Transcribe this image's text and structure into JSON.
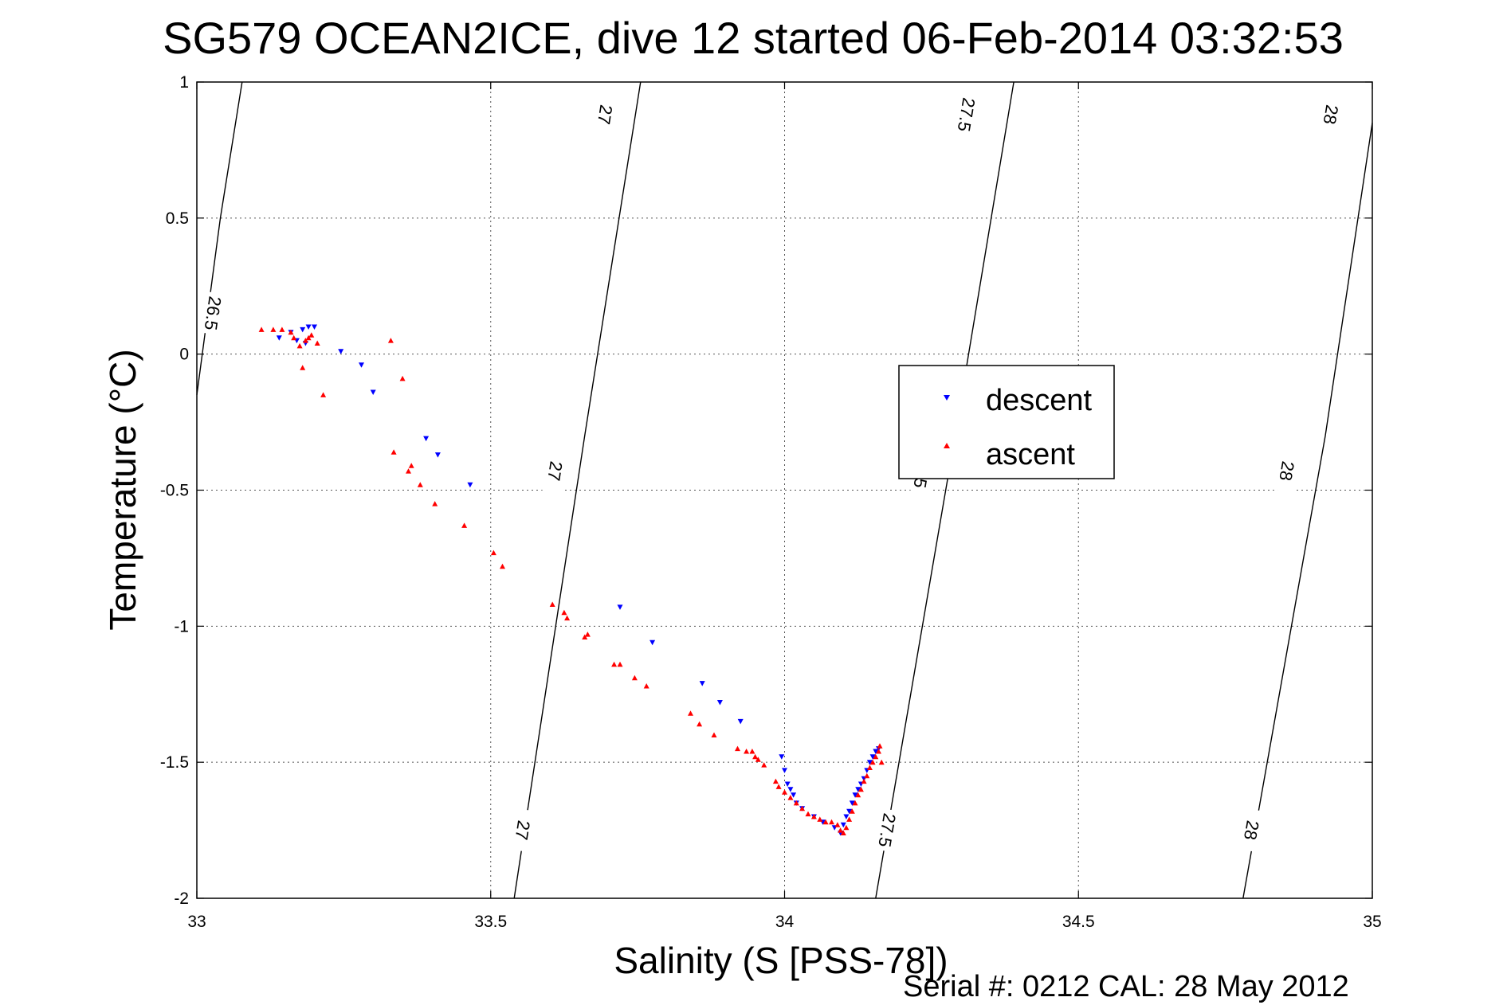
{
  "chart_data": {
    "type": "scatter",
    "title": "SG579 OCEAN2ICE, dive 12 started 06-Feb-2014 03:32:53",
    "xlabel": "Salinity (S [PSS-78])",
    "ylabel": "Temperature (°C)",
    "xlim": [
      33,
      35
    ],
    "ylim": [
      -2,
      1
    ],
    "x_ticks": [
      "33",
      "33.5",
      "34",
      "34.5",
      "35"
    ],
    "y_ticks": [
      "1",
      "0.5",
      "0",
      "-0.5",
      "-1",
      "-1.5",
      "-2"
    ],
    "grid": true,
    "legend_position": "center-right",
    "series": [
      {
        "name": "descent",
        "color": "#0000ff",
        "marker": "triangle-down",
        "points": [
          [
            33.14,
            0.06
          ],
          [
            33.16,
            0.08
          ],
          [
            33.17,
            0.05
          ],
          [
            33.18,
            0.09
          ],
          [
            33.19,
            0.1
          ],
          [
            33.2,
            0.1
          ],
          [
            33.185,
            0.04
          ],
          [
            33.245,
            0.01
          ],
          [
            33.28,
            -0.04
          ],
          [
            33.3,
            -0.14
          ],
          [
            33.39,
            -0.31
          ],
          [
            33.41,
            -0.37
          ],
          [
            33.465,
            -0.48
          ],
          [
            33.72,
            -0.93
          ],
          [
            33.775,
            -1.06
          ],
          [
            33.86,
            -1.21
          ],
          [
            33.89,
            -1.28
          ],
          [
            33.925,
            -1.35
          ],
          [
            33.995,
            -1.48
          ],
          [
            34.0,
            -1.53
          ],
          [
            34.005,
            -1.58
          ],
          [
            34.01,
            -1.6
          ],
          [
            34.015,
            -1.62
          ],
          [
            34.02,
            -1.65
          ],
          [
            34.03,
            -1.67
          ],
          [
            34.05,
            -1.7
          ],
          [
            34.065,
            -1.72
          ],
          [
            34.085,
            -1.74
          ],
          [
            34.095,
            -1.76
          ],
          [
            34.1,
            -1.73
          ],
          [
            34.105,
            -1.7
          ],
          [
            34.11,
            -1.68
          ],
          [
            34.115,
            -1.65
          ],
          [
            34.12,
            -1.62
          ],
          [
            34.125,
            -1.6
          ],
          [
            34.13,
            -1.58
          ],
          [
            34.135,
            -1.56
          ],
          [
            34.14,
            -1.53
          ],
          [
            34.145,
            -1.5
          ],
          [
            34.15,
            -1.48
          ],
          [
            34.155,
            -1.46
          ],
          [
            34.16,
            -1.45
          ]
        ]
      },
      {
        "name": "ascent",
        "color": "#ff0000",
        "marker": "triangle-up",
        "points": [
          [
            33.11,
            0.09
          ],
          [
            33.13,
            0.09
          ],
          [
            33.145,
            0.09
          ],
          [
            33.16,
            0.08
          ],
          [
            33.165,
            0.06
          ],
          [
            33.175,
            0.03
          ],
          [
            33.185,
            0.05
          ],
          [
            33.19,
            0.06
          ],
          [
            33.195,
            0.07
          ],
          [
            33.205,
            0.04
          ],
          [
            33.18,
            -0.05
          ],
          [
            33.215,
            -0.15
          ],
          [
            33.33,
            0.05
          ],
          [
            33.35,
            -0.09
          ],
          [
            33.335,
            -0.36
          ],
          [
            33.36,
            -0.43
          ],
          [
            33.365,
            -0.41
          ],
          [
            33.38,
            -0.48
          ],
          [
            33.405,
            -0.55
          ],
          [
            33.455,
            -0.63
          ],
          [
            33.505,
            -0.73
          ],
          [
            33.52,
            -0.78
          ],
          [
            33.605,
            -0.92
          ],
          [
            33.625,
            -0.95
          ],
          [
            33.63,
            -0.97
          ],
          [
            33.66,
            -1.04
          ],
          [
            33.665,
            -1.03
          ],
          [
            33.71,
            -1.14
          ],
          [
            33.72,
            -1.14
          ],
          [
            33.745,
            -1.19
          ],
          [
            33.765,
            -1.22
          ],
          [
            33.84,
            -1.32
          ],
          [
            33.855,
            -1.36
          ],
          [
            33.88,
            -1.4
          ],
          [
            33.92,
            -1.45
          ],
          [
            33.935,
            -1.46
          ],
          [
            33.945,
            -1.46
          ],
          [
            33.95,
            -1.48
          ],
          [
            33.955,
            -1.49
          ],
          [
            33.965,
            -1.51
          ],
          [
            33.985,
            -1.57
          ],
          [
            33.99,
            -1.59
          ],
          [
            34.0,
            -1.61
          ],
          [
            34.01,
            -1.63
          ],
          [
            34.02,
            -1.65
          ],
          [
            34.03,
            -1.67
          ],
          [
            34.04,
            -1.69
          ],
          [
            34.05,
            -1.7
          ],
          [
            34.06,
            -1.71
          ],
          [
            34.07,
            -1.72
          ],
          [
            34.08,
            -1.72
          ],
          [
            34.09,
            -1.73
          ],
          [
            34.095,
            -1.75
          ],
          [
            34.1,
            -1.76
          ],
          [
            34.105,
            -1.74
          ],
          [
            34.11,
            -1.71
          ],
          [
            34.115,
            -1.68
          ],
          [
            34.12,
            -1.65
          ],
          [
            34.125,
            -1.62
          ],
          [
            34.13,
            -1.6
          ],
          [
            34.135,
            -1.57
          ],
          [
            34.14,
            -1.55
          ],
          [
            34.145,
            -1.52
          ],
          [
            34.15,
            -1.5
          ],
          [
            34.155,
            -1.48
          ],
          [
            34.16,
            -1.46
          ],
          [
            34.162,
            -1.44
          ],
          [
            34.165,
            -1.5
          ]
        ]
      }
    ],
    "density_contours": [
      {
        "label": "26.5",
        "points": [
          [
            33.0,
            -0.15
          ],
          [
            33.04,
            0.5
          ],
          [
            33.077,
            1.0
          ]
        ],
        "labels_at": [
          [
            33.028,
            0.15
          ]
        ]
      },
      {
        "label": "27",
        "points": [
          [
            33.54,
            -2.0
          ],
          [
            33.66,
            -0.3
          ],
          [
            33.755,
            1.0
          ]
        ],
        "labels_at": [
          [
            33.555,
            -1.75
          ],
          [
            33.61,
            -0.43
          ],
          [
            33.695,
            0.88
          ]
        ]
      },
      {
        "label": "27.5",
        "points": [
          [
            34.155,
            -2.0
          ],
          [
            34.29,
            -0.3
          ],
          [
            34.39,
            1.0
          ]
        ],
        "labels_at": [
          [
            34.175,
            -1.75
          ],
          [
            34.235,
            -0.43
          ],
          [
            34.31,
            0.88
          ]
        ]
      },
      {
        "label": "28",
        "points": [
          [
            34.78,
            -2.0
          ],
          [
            34.92,
            -0.3
          ],
          [
            35.0,
            0.85
          ]
        ],
        "labels_at": [
          [
            34.795,
            -1.75
          ],
          [
            34.855,
            -0.43
          ],
          [
            34.93,
            0.88
          ]
        ]
      }
    ]
  },
  "footer": "Serial #: 0212  CAL: 28 May 2012"
}
